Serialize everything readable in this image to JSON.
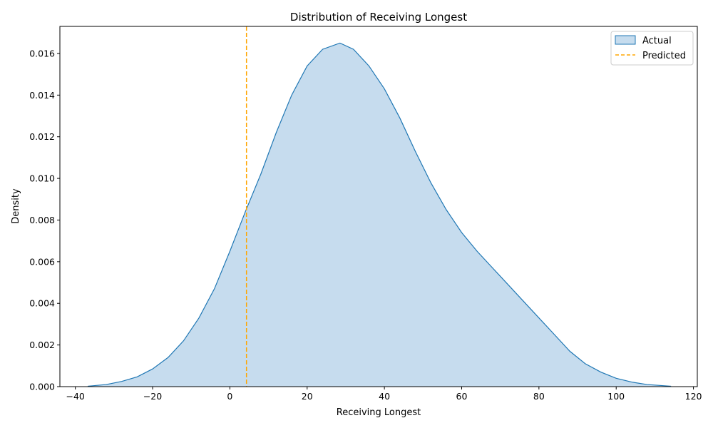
{
  "chart_data": {
    "type": "area",
    "title": "Distribution of Receiving Longest",
    "xlabel": "Receiving Longest",
    "ylabel": "Density",
    "xlim": [
      -44,
      121
    ],
    "ylim": [
      0,
      0.0173
    ],
    "xticks": [
      -40,
      -20,
      0,
      20,
      40,
      60,
      80,
      100,
      120
    ],
    "yticks": [
      0.0,
      0.002,
      0.004,
      0.006,
      0.008,
      0.01,
      0.012,
      0.014,
      0.016
    ],
    "xtick_labels": [
      "−40",
      "−20",
      "0",
      "20",
      "40",
      "60",
      "80",
      "100",
      "120"
    ],
    "ytick_labels": [
      "0.000",
      "0.002",
      "0.004",
      "0.006",
      "0.008",
      "0.010",
      "0.012",
      "0.014",
      "0.016"
    ],
    "grid": false,
    "legend_position": "top-right",
    "series": [
      {
        "name": "Actual",
        "kind": "kde-fill",
        "line_color": "#1f77b4",
        "fill_color": "#c6dcee",
        "x": [
          -36.8,
          -32,
          -28,
          -24,
          -20,
          -16,
          -12,
          -8,
          -4,
          0,
          4,
          8,
          12,
          16,
          20,
          24,
          28.5,
          32,
          36,
          40,
          44,
          48,
          52,
          56,
          60,
          64,
          68,
          72,
          76,
          80,
          84,
          88,
          92,
          96,
          100,
          104,
          108,
          114.2
        ],
        "y": [
          2e-05,
          0.0001,
          0.00025,
          0.00047,
          0.00085,
          0.0014,
          0.0022,
          0.0033,
          0.0047,
          0.0065,
          0.0084,
          0.0102,
          0.0122,
          0.014,
          0.0154,
          0.0162,
          0.0165,
          0.0162,
          0.0154,
          0.0143,
          0.0129,
          0.0113,
          0.0098,
          0.0085,
          0.0074,
          0.0065,
          0.0057,
          0.0049,
          0.0041,
          0.0033,
          0.0025,
          0.0017,
          0.0011,
          0.0007,
          0.0004,
          0.00022,
          0.0001,
          2e-05
        ]
      },
      {
        "name": "Predicted",
        "kind": "vline",
        "color": "#ffa500",
        "x": 4.3
      }
    ]
  }
}
